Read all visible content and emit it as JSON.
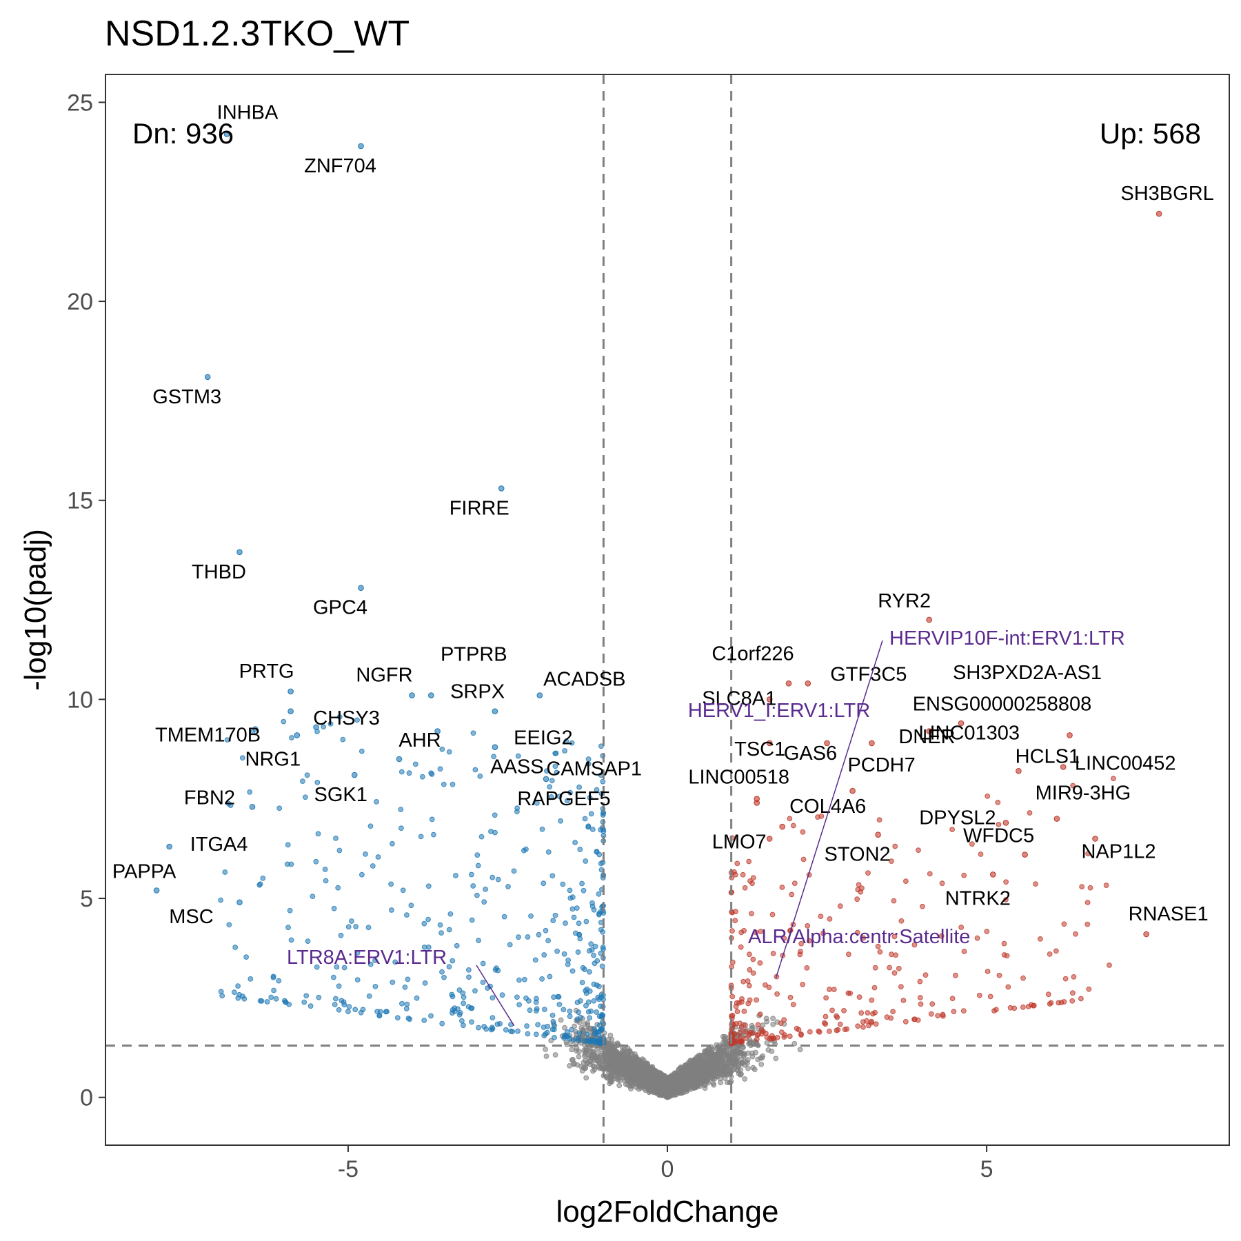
{
  "chart_data": {
    "type": "scatter",
    "title": "NSD1.2.3TKO_WT",
    "xlabel": "log2FoldChange",
    "ylabel": "-log10(padj)",
    "xlim": [
      -8.8,
      8.8
    ],
    "ylim": [
      -1.2,
      25.7
    ],
    "x_ticks": [
      -5,
      0,
      5
    ],
    "x_tick_labels": [
      "-5",
      "0",
      "5"
    ],
    "y_ticks": [
      0,
      5,
      10,
      15,
      20,
      25
    ],
    "y_tick_labels": [
      "0",
      "5",
      "10",
      "15",
      "20",
      "25"
    ],
    "grid": false,
    "thresholds": {
      "log2fc": [
        -1,
        1
      ],
      "neg_log10_padj": 1.3
    },
    "colors": {
      "down": "#1f78b4",
      "up": "#c0392b",
      "ns": "#808080",
      "te_label": "#5a2a8f",
      "threshold_line": "#7f7f7f"
    },
    "counts": {
      "down_label": "Dn: 936",
      "up_label": "Up: 568"
    },
    "labeled_genes": [
      {
        "gene": "INHBA",
        "x": -6.9,
        "y": 24.2,
        "class": "down"
      },
      {
        "gene": "ZNF704",
        "x": -4.8,
        "y": 23.9,
        "class": "down"
      },
      {
        "gene": "GSTM3",
        "x": -7.2,
        "y": 18.1,
        "class": "down"
      },
      {
        "gene": "FIRRE",
        "x": -2.6,
        "y": 15.3,
        "class": "down"
      },
      {
        "gene": "THBD",
        "x": -6.7,
        "y": 13.7,
        "class": "down"
      },
      {
        "gene": "GPC4",
        "x": -4.8,
        "y": 12.8,
        "class": "down"
      },
      {
        "gene": "PRTG",
        "x": -5.9,
        "y": 10.2,
        "class": "down"
      },
      {
        "gene": "NGFR",
        "x": -4.0,
        "y": 10.1,
        "class": "down"
      },
      {
        "gene": "PTPRB",
        "x": -3.7,
        "y": 10.1,
        "class": "down"
      },
      {
        "gene": "SRPX",
        "x": -3.6,
        "y": 9.2,
        "class": "down"
      },
      {
        "gene": "ACADSB",
        "x": -2.0,
        "y": 10.1,
        "class": "down"
      },
      {
        "gene": "CHSY3",
        "x": -5.5,
        "y": 9.3,
        "class": "down"
      },
      {
        "gene": "TMEM170B",
        "x": -5.9,
        "y": 9.7,
        "class": "down"
      },
      {
        "gene": "EEIG2",
        "x": -2.7,
        "y": 9.7,
        "class": "down"
      },
      {
        "gene": "NRG1",
        "x": -5.8,
        "y": 9.1,
        "class": "down"
      },
      {
        "gene": "AHR",
        "x": -4.2,
        "y": 8.5,
        "class": "down"
      },
      {
        "gene": "AASS",
        "x": -2.7,
        "y": 8.8,
        "class": "down"
      },
      {
        "gene": "FBN2",
        "x": -6.5,
        "y": 7.3,
        "class": "down"
      },
      {
        "gene": "SGK1",
        "x": -4.9,
        "y": 8.1,
        "class": "down"
      },
      {
        "gene": "RAPGEF5",
        "x": -1.9,
        "y": 8.0,
        "class": "down"
      },
      {
        "gene": "ITGA4",
        "x": -7.8,
        "y": 6.3,
        "class": "down"
      },
      {
        "gene": "PAPPA",
        "x": -8.0,
        "y": 5.2,
        "class": "down"
      },
      {
        "gene": "MSC",
        "x": -6.7,
        "y": 4.9,
        "class": "down"
      },
      {
        "gene": "SH3BGRL",
        "x": 7.7,
        "y": 22.2,
        "class": "up"
      },
      {
        "gene": "RYR2",
        "x": 4.1,
        "y": 12.0,
        "class": "up"
      },
      {
        "gene": "C1orf226",
        "x": 1.9,
        "y": 10.4,
        "class": "up"
      },
      {
        "gene": "GTF3C5",
        "x": 2.2,
        "y": 10.4,
        "class": "up"
      },
      {
        "gene": "SH3PXD2A-AS1",
        "x": 4.6,
        "y": 9.4,
        "class": "up"
      },
      {
        "gene": "SLC8A1",
        "x": 1.6,
        "y": 10.0,
        "class": "up"
      },
      {
        "gene": "DNER",
        "x": 3.2,
        "y": 8.9,
        "class": "up"
      },
      {
        "gene": "ENSG00000258808",
        "x": 6.3,
        "y": 9.1,
        "class": "up"
      },
      {
        "gene": "TSC1",
        "x": 1.6,
        "y": 8.9,
        "class": "up"
      },
      {
        "gene": "GAS6",
        "x": 2.5,
        "y": 8.9,
        "class": "up"
      },
      {
        "gene": "LINC01303",
        "x": 4.1,
        "y": 9.2,
        "class": "up"
      },
      {
        "gene": "HCLS1",
        "x": 5.5,
        "y": 8.2,
        "class": "up"
      },
      {
        "gene": "LINC00452",
        "x": 6.2,
        "y": 8.3,
        "class": "up"
      },
      {
        "gene": "CAMSAP1",
        "x": 1.4,
        "y": 7.4,
        "class": "up"
      },
      {
        "gene": "LINC00518",
        "x": 1.4,
        "y": 7.5,
        "class": "up"
      },
      {
        "gene": "PCDH7",
        "x": 2.9,
        "y": 7.7,
        "class": "up"
      },
      {
        "gene": "MIR9-3HG",
        "x": 6.1,
        "y": 7.0,
        "class": "up"
      },
      {
        "gene": "COL4A6",
        "x": 1.8,
        "y": 6.8,
        "class": "up"
      },
      {
        "gene": "DPYSL2",
        "x": 5.3,
        "y": 6.9,
        "class": "up"
      },
      {
        "gene": "LMO7",
        "x": 1.6,
        "y": 6.5,
        "class": "up"
      },
      {
        "gene": "STON2",
        "x": 3.3,
        "y": 6.6,
        "class": "up"
      },
      {
        "gene": "WFDC5",
        "x": 5.6,
        "y": 6.1,
        "class": "up"
      },
      {
        "gene": "NAP1L2",
        "x": 6.7,
        "y": 6.5,
        "class": "up"
      },
      {
        "gene": "NTRK2",
        "x": 5.1,
        "y": 5.6,
        "class": "up"
      },
      {
        "gene": "RNASE1",
        "x": 7.5,
        "y": 4.1,
        "class": "up"
      }
    ],
    "labeled_transposable_elements": [
      {
        "name": "HERVIP10F-int:ERV1:LTR",
        "x": 1.7,
        "y": 3.0,
        "class": "up"
      },
      {
        "name": "HERV1_I:ERV1:LTR",
        "x": 2.3,
        "y": 8.6,
        "class": "up"
      },
      {
        "name": "ALR/Alpha:centr:Satellite",
        "x": 1.9,
        "y": 3.2,
        "class": "up"
      },
      {
        "name": "LTR8A:ERV1:LTR",
        "x": -2.4,
        "y": 1.8,
        "class": "down"
      }
    ]
  }
}
